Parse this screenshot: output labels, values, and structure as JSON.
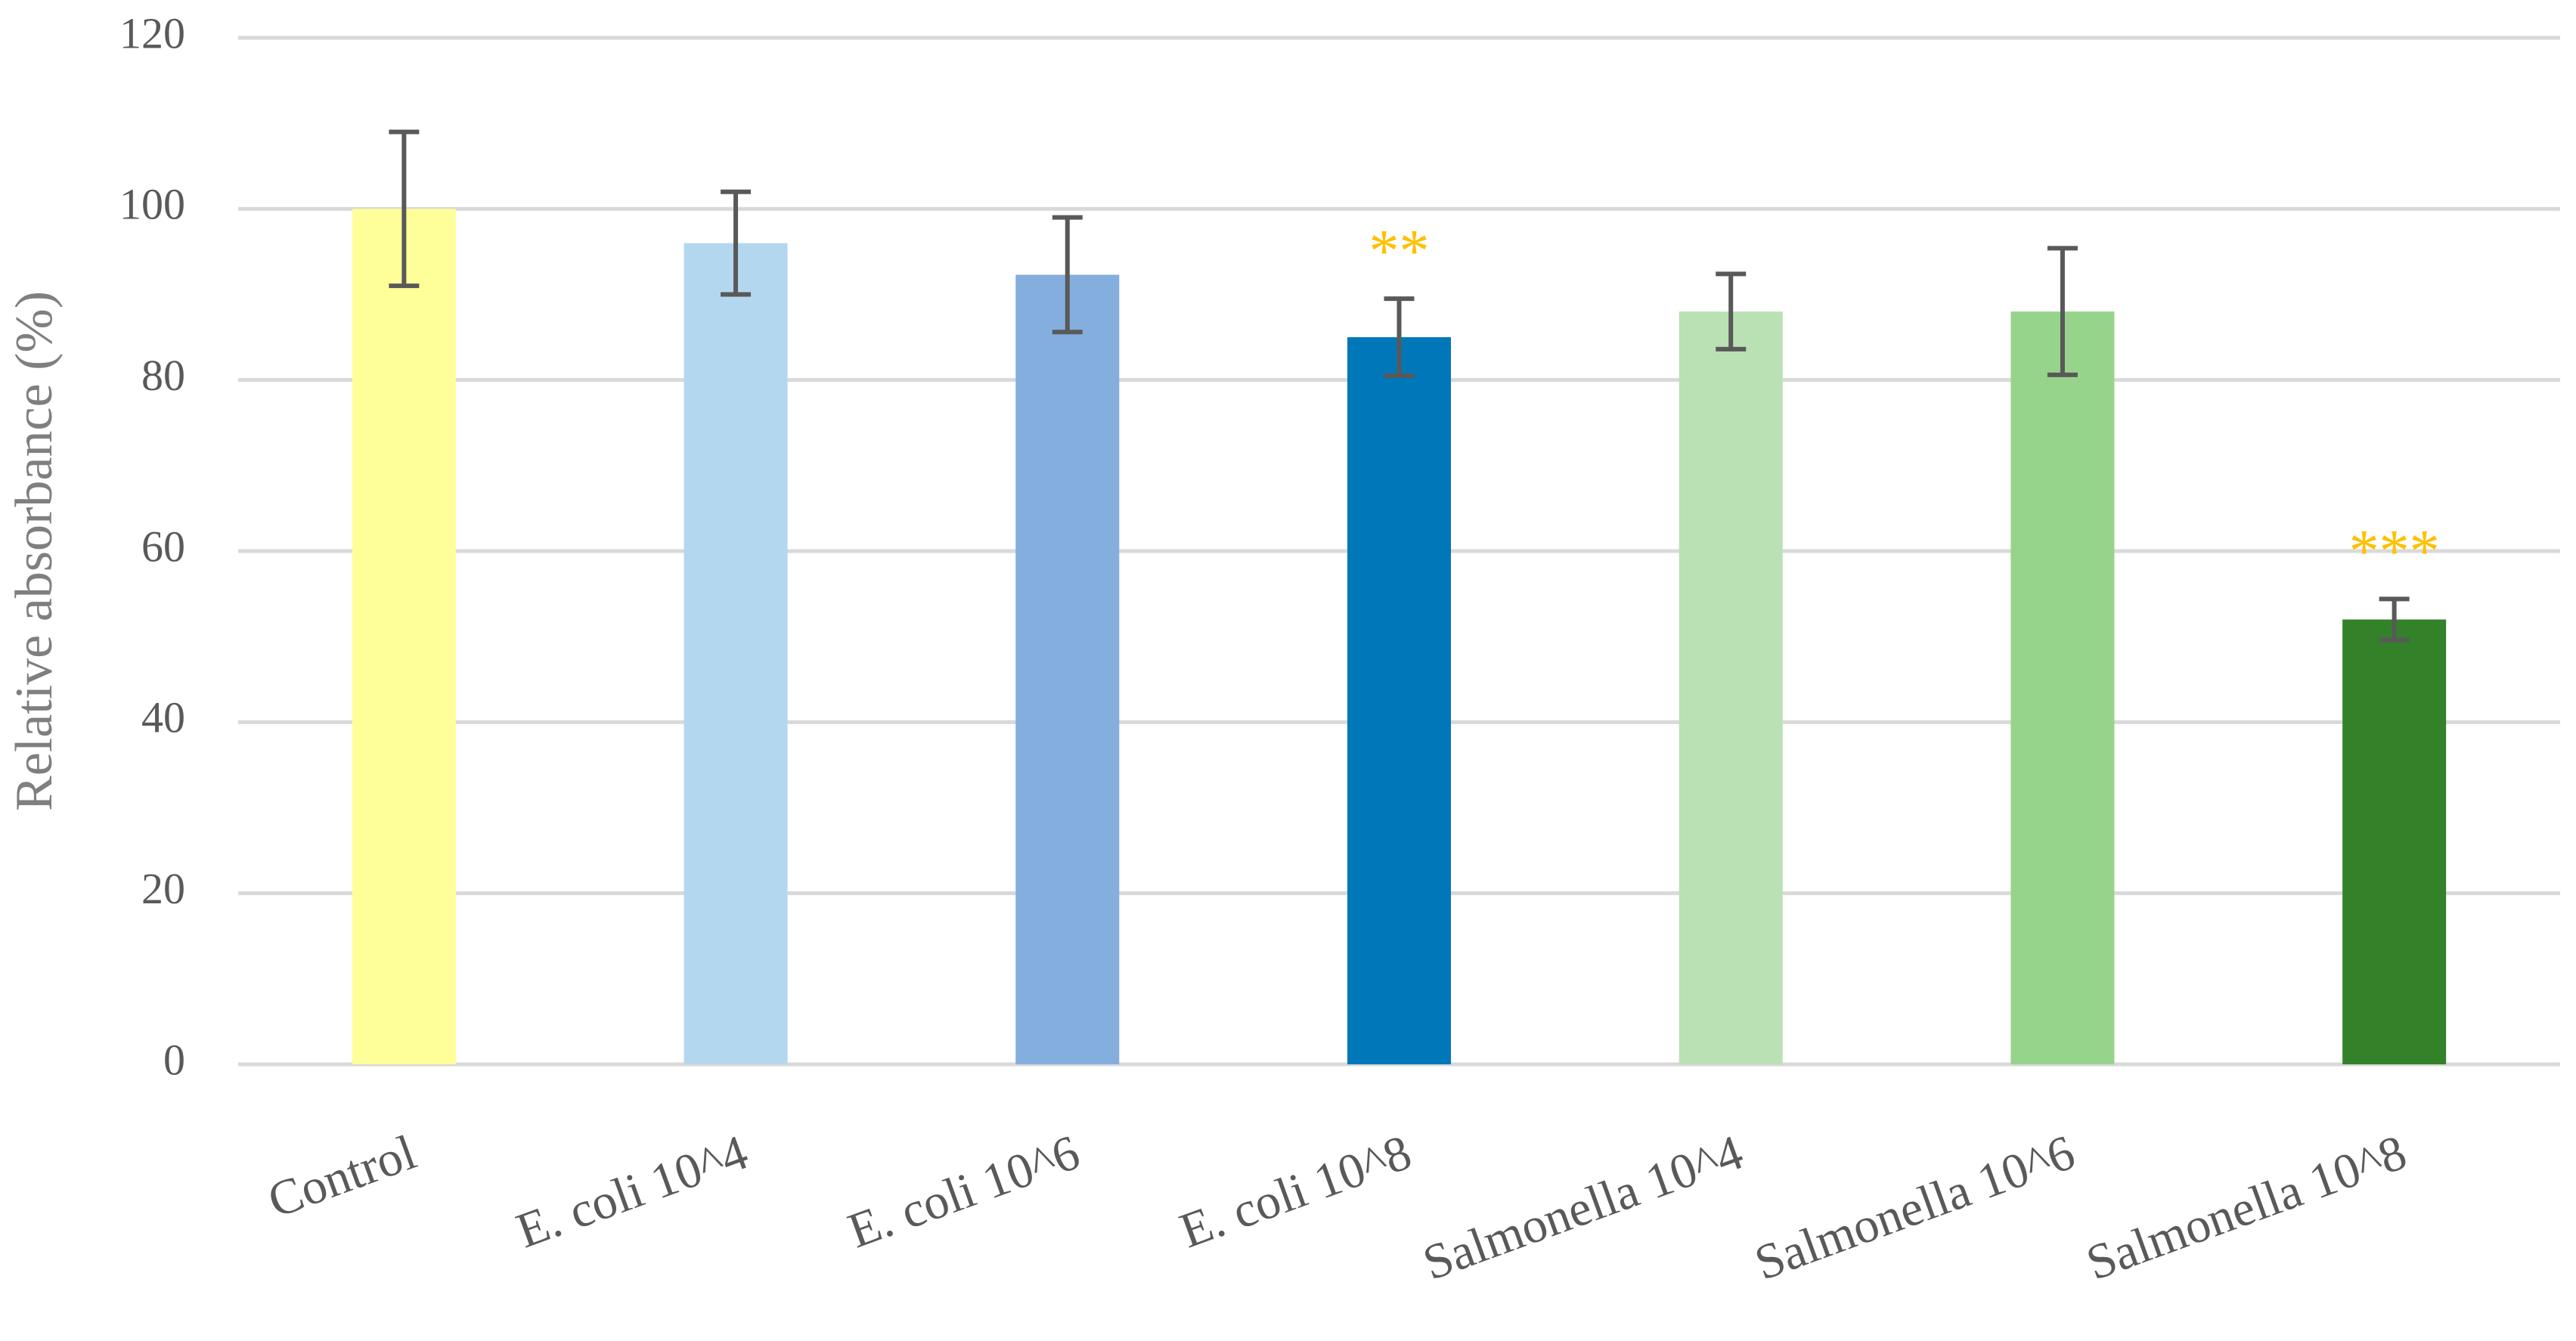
{
  "chart_data": {
    "type": "bar",
    "y_label": "Relative absorbance (%)",
    "categories": [
      "Control",
      "E. coli 10^4",
      "E. coli 10^6",
      "E. coli 10^8",
      "Salmonella 10^4",
      "Salmonella 10^6",
      "Salmonella 10^8"
    ],
    "values": [
      100,
      96,
      92.3,
      85,
      88,
      88,
      52
    ],
    "errors": [
      9,
      6,
      6.7,
      4.5,
      4.4,
      7.4,
      2.4
    ],
    "colors": [
      "#FFFF99",
      "#B4D7F0",
      "#84AEDE",
      "#0077B8",
      "#B9E1B4",
      "#96D38B",
      "#338129"
    ],
    "annotations": [
      {
        "text": "**",
        "category": "E. coli 10^8"
      },
      {
        "text": "***",
        "category": "Salmonella 10^8"
      }
    ],
    "annotation_color": "#FFC000",
    "ylim": [
      0,
      120
    ],
    "yticks": [
      0,
      20,
      40,
      60,
      80,
      100,
      120
    ],
    "grid": true
  }
}
